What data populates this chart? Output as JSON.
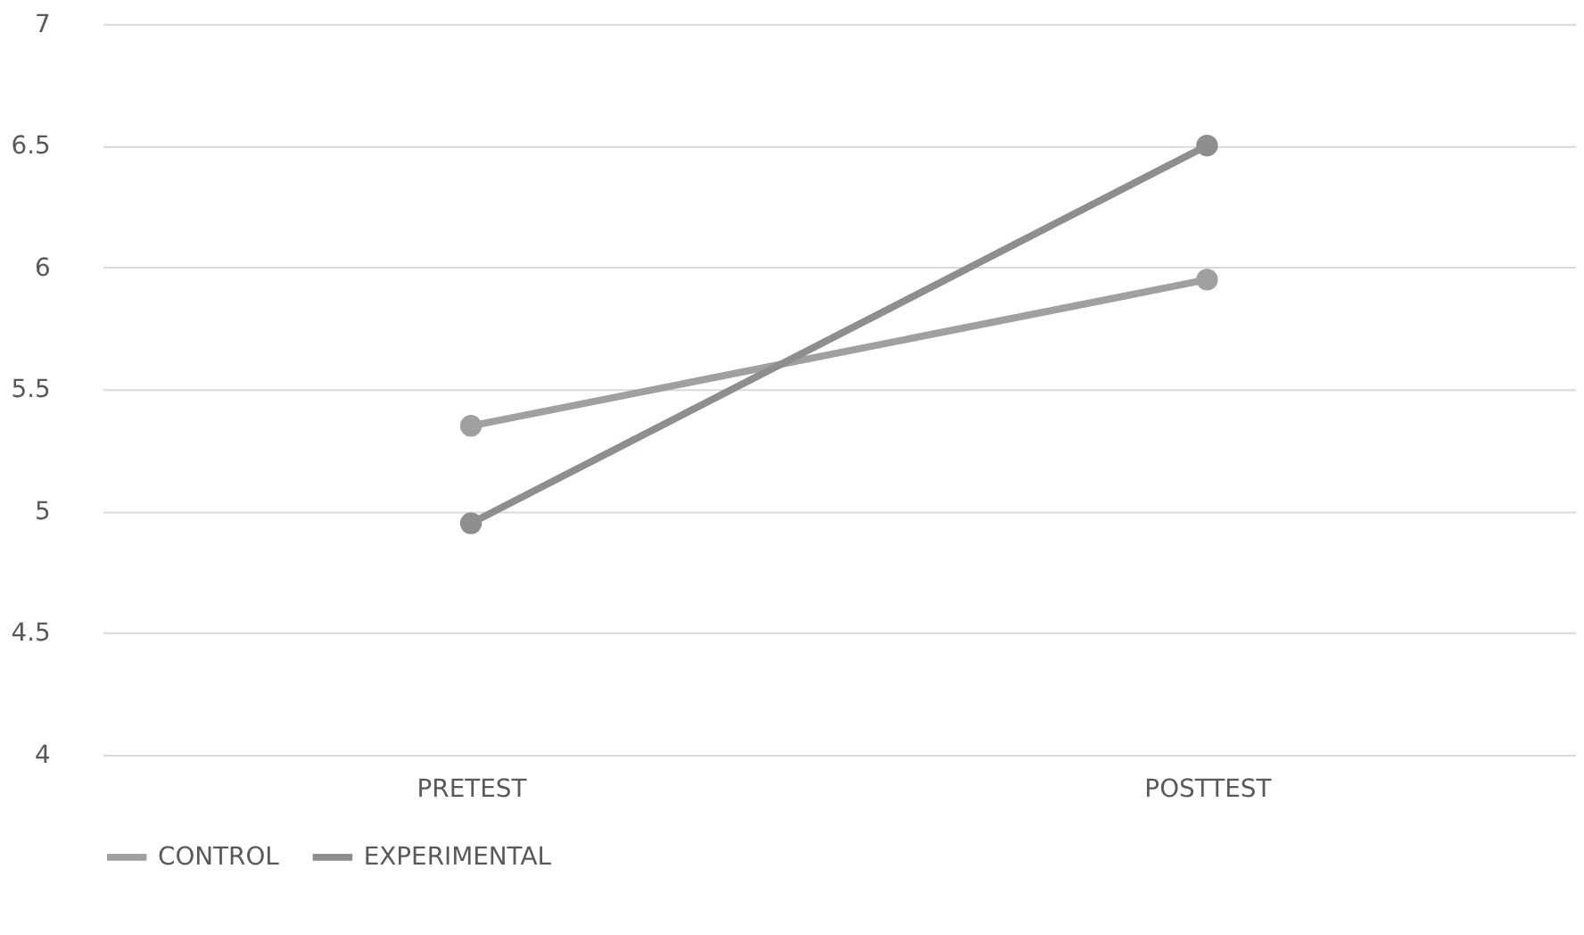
{
  "chart_data": {
    "type": "line",
    "categories": [
      "PRETEST",
      "POSTTEST"
    ],
    "series": [
      {
        "name": "CONTROL",
        "color": "#a0a0a0",
        "values": [
          5.35,
          5.95
        ]
      },
      {
        "name": "EXPERIMENTAL",
        "color": "#8e8e8e",
        "values": [
          4.95,
          6.5
        ]
      }
    ],
    "ylim": [
      4,
      7
    ],
    "yticks": [
      4,
      4.5,
      5,
      5.5,
      6,
      6.5,
      7
    ],
    "grid": "y",
    "legend": "bottom",
    "marker": "circle",
    "line_style": "solid"
  }
}
